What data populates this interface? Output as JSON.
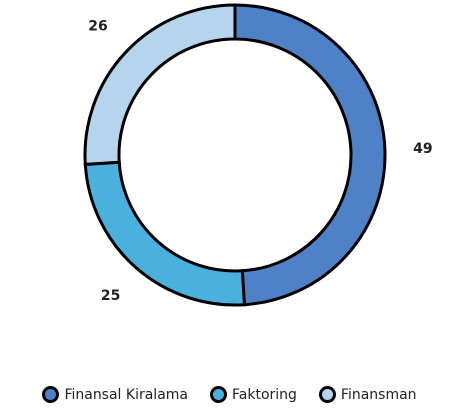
{
  "chart_data": {
    "type": "donut",
    "categories": [
      "Finansal Kiralama",
      "Faktoring",
      "Finansman"
    ],
    "values": [
      49,
      25,
      26
    ],
    "colors": [
      "#4f81c7",
      "#4ab0dd",
      "#b4d5ec"
    ],
    "legend": "bottom"
  }
}
